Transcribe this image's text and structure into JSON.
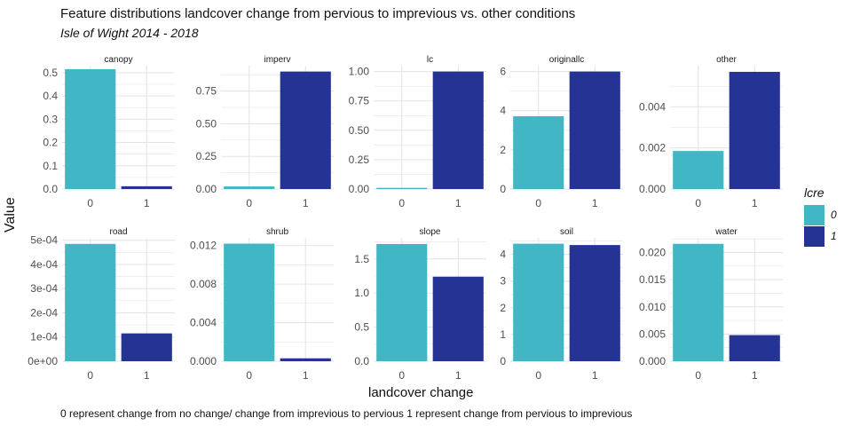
{
  "title": "Feature distributions landcover change from pervious to imprevious vs. other conditions",
  "subtitle": "Isle of Wight 2014 - 2018",
  "caption": "0 represent change from no change/ change from imprevious to pervious 1 represent change from pervious to imprevious",
  "colors": {
    "class_0": "#41b6c4",
    "class_1": "#253494",
    "grid": "#e3e3e3",
    "axis_text": "#4d4d4d"
  },
  "chart_data": {
    "type": "bar",
    "facet": true,
    "xlabel": "landcover change",
    "ylabel": "Value",
    "grid": true,
    "legend": {
      "title": "lcre",
      "placement": "right",
      "entries": [
        "0",
        "1"
      ]
    },
    "panels": [
      {
        "name": "canopy",
        "categories": [
          "0",
          "1"
        ],
        "values": [
          0.515,
          0.012
        ],
        "ylim": [
          0,
          0.53
        ],
        "yticks": [
          0,
          0.1,
          0.2,
          0.3,
          0.4,
          0.5
        ],
        "ytick_labels": [
          "0.0",
          "0.1",
          "0.2",
          "0.3",
          "0.4",
          "0.5"
        ]
      },
      {
        "name": "imperv",
        "categories": [
          "0",
          "1"
        ],
        "values": [
          0.02,
          0.9
        ],
        "ylim": [
          0,
          0.945
        ],
        "yticks": [
          0,
          0.25,
          0.5,
          0.75
        ],
        "ytick_labels": [
          "0.00",
          "0.25",
          "0.50",
          "0.75"
        ]
      },
      {
        "name": "lc",
        "categories": [
          "0",
          "1"
        ],
        "values": [
          0.01,
          1.0
        ],
        "ylim": [
          0,
          1.05
        ],
        "yticks": [
          0,
          0.25,
          0.5,
          0.75,
          1.0
        ],
        "ytick_labels": [
          "0.00",
          "0.25",
          "0.50",
          "0.75",
          "1.00"
        ]
      },
      {
        "name": "originallc",
        "categories": [
          "0",
          "1"
        ],
        "values": [
          3.72,
          6.0
        ],
        "ylim": [
          0,
          6.3
        ],
        "yticks": [
          0,
          2,
          4,
          6
        ],
        "ytick_labels": [
          "0",
          "2",
          "4",
          "6"
        ]
      },
      {
        "name": "other",
        "categories": [
          "0",
          "1"
        ],
        "values": [
          0.00185,
          0.0057
        ],
        "ylim": [
          0,
          0.006
        ],
        "yticks": [
          0,
          0.002,
          0.004
        ],
        "ytick_labels": [
          "0.000",
          "0.002",
          "0.004"
        ]
      },
      {
        "name": "road",
        "categories": [
          "0",
          "1"
        ],
        "values": [
          0.000485,
          0.000115
        ],
        "ylim": [
          0,
          0.00051
        ],
        "yticks": [
          0,
          0.0001,
          0.0002,
          0.0003,
          0.0004,
          0.0005
        ],
        "ytick_labels": [
          "0e+00",
          "1e-04",
          "2e-04",
          "3e-04",
          "4e-04",
          "5e-04"
        ]
      },
      {
        "name": "shrub",
        "categories": [
          "0",
          "1"
        ],
        "values": [
          0.0122,
          0.0003
        ],
        "ylim": [
          0,
          0.0128
        ],
        "yticks": [
          0,
          0.004,
          0.008,
          0.012
        ],
        "ytick_labels": [
          "0.000",
          "0.004",
          "0.008",
          "0.012"
        ]
      },
      {
        "name": "slope",
        "categories": [
          "0",
          "1"
        ],
        "values": [
          1.72,
          1.24
        ],
        "ylim": [
          0,
          1.81
        ],
        "yticks": [
          0,
          0.5,
          1.0,
          1.5
        ],
        "ytick_labels": [
          "0.0",
          "0.5",
          "1.0",
          "1.5"
        ]
      },
      {
        "name": "soil",
        "categories": [
          "0",
          "1"
        ],
        "values": [
          4.4,
          4.35
        ],
        "ylim": [
          0,
          4.62
        ],
        "yticks": [
          0,
          1,
          2,
          3,
          4
        ],
        "ytick_labels": [
          "0",
          "1",
          "2",
          "3",
          "4"
        ]
      },
      {
        "name": "water",
        "categories": [
          "0",
          "1"
        ],
        "values": [
          0.0216,
          0.0048
        ],
        "ylim": [
          0,
          0.0227
        ],
        "yticks": [
          0,
          0.005,
          0.01,
          0.015,
          0.02
        ],
        "ytick_labels": [
          "0.000",
          "0.005",
          "0.010",
          "0.015",
          "0.020"
        ]
      }
    ]
  }
}
